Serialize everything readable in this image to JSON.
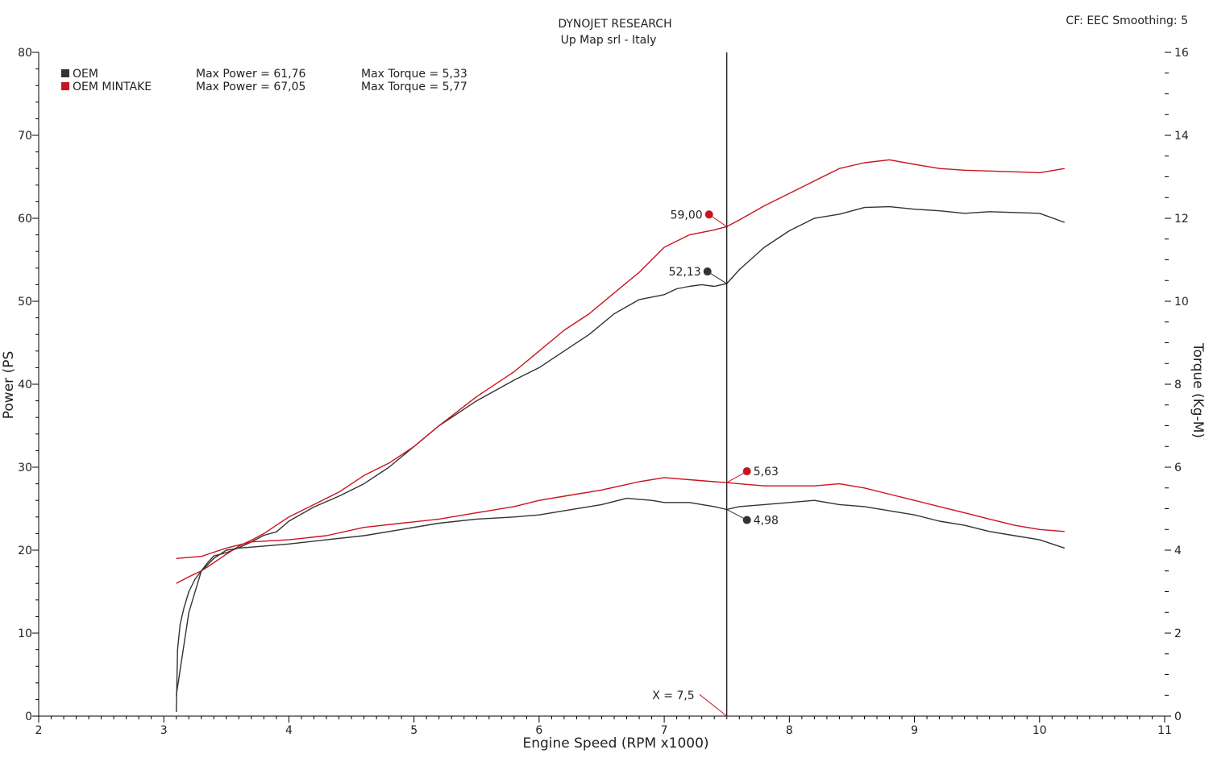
{
  "header": {
    "title": "DYNOJET RESEARCH",
    "subtitle": "Up Map srl - Italy",
    "settings": "CF: EEC  Smoothing: 5"
  },
  "colors": {
    "oem": "#333333",
    "mintake": "#c8141e",
    "axis": "#000000"
  },
  "legend": [
    {
      "name": "OEM",
      "power_label": "Max Power = 61,76",
      "torque_label": "Max Torque = 5,33",
      "color": "#333333"
    },
    {
      "name": "OEM MINTAKE",
      "power_label": "Max Power = 67,05",
      "torque_label": "Max Torque = 5,77",
      "color": "#c8141e"
    }
  ],
  "cursor": {
    "x": 7.5,
    "label": "X = 7,5"
  },
  "markers": [
    {
      "series": "OEM MINTAKE",
      "axis": "power",
      "value": 59.0,
      "label": "59,00"
    },
    {
      "series": "OEM",
      "axis": "power",
      "value": 52.13,
      "label": "52,13"
    },
    {
      "series": "OEM MINTAKE",
      "axis": "torque",
      "value": 5.63,
      "label": "5,63"
    },
    {
      "series": "OEM",
      "axis": "torque",
      "value": 4.98,
      "label": "4,98"
    }
  ],
  "chart_data": {
    "type": "line",
    "title": "DYNOJET RESEARCH",
    "subtitle": "Up Map srl - Italy",
    "xlabel": "Engine Speed (RPM x1000)",
    "ylabel": "Power (PS",
    "y2label": "Torque (Kg-M)",
    "xlim": [
      2,
      11
    ],
    "ylim": [
      0,
      80
    ],
    "y2lim": [
      0,
      16
    ],
    "xticks": [
      "2",
      "3",
      "4",
      "5",
      "6",
      "7",
      "8",
      "9",
      "10",
      "11"
    ],
    "yticks": [
      "0",
      "10",
      "20",
      "30",
      "40",
      "50",
      "60",
      "70",
      "80"
    ],
    "y2ticks": [
      "0",
      "2",
      "4",
      "6",
      "8",
      "10",
      "12",
      "14",
      "16"
    ],
    "grid": false,
    "legend_position": "top-left",
    "series": [
      {
        "name": "OEM",
        "measure": "power",
        "axis": "left",
        "x": [
          3.1,
          3.11,
          3.13,
          3.16,
          3.2,
          3.25,
          3.3,
          3.35,
          3.4,
          3.5,
          3.6,
          3.7,
          3.8,
          3.9,
          4.0,
          4.2,
          4.4,
          4.6,
          4.8,
          5.0,
          5.2,
          5.5,
          5.8,
          6.0,
          6.2,
          6.4,
          6.6,
          6.8,
          7.0,
          7.1,
          7.2,
          7.3,
          7.4,
          7.5,
          7.6,
          7.8,
          8.0,
          8.2,
          8.4,
          8.6,
          8.8,
          9.0,
          9.2,
          9.4,
          9.6,
          9.8,
          10.0,
          10.2
        ],
        "values": [
          0.5,
          8.0,
          11.0,
          13.0,
          15.0,
          16.5,
          17.5,
          18.5,
          19.3,
          19.7,
          20.3,
          21.0,
          21.8,
          22.2,
          23.5,
          25.2,
          26.5,
          28.0,
          30.0,
          32.5,
          35.0,
          38.0,
          40.5,
          42.0,
          44.0,
          46.0,
          48.5,
          50.2,
          50.8,
          51.5,
          51.8,
          52.0,
          51.8,
          52.13,
          53.8,
          56.5,
          58.5,
          60.0,
          60.5,
          61.3,
          61.4,
          61.1,
          60.9,
          60.6,
          60.8,
          60.7,
          60.6,
          59.5
        ]
      },
      {
        "name": "OEM MINTAKE",
        "measure": "power",
        "axis": "left",
        "x": [
          3.1,
          3.2,
          3.3,
          3.4,
          3.5,
          3.6,
          3.7,
          3.8,
          3.9,
          4.0,
          4.2,
          4.4,
          4.6,
          4.8,
          5.0,
          5.2,
          5.5,
          5.8,
          6.0,
          6.2,
          6.4,
          6.6,
          6.8,
          7.0,
          7.2,
          7.4,
          7.5,
          7.6,
          7.8,
          8.0,
          8.2,
          8.4,
          8.6,
          8.8,
          9.0,
          9.2,
          9.4,
          9.6,
          9.8,
          10.0,
          10.2
        ],
        "values": [
          16.0,
          16.8,
          17.5,
          18.5,
          19.5,
          20.5,
          21.2,
          22.0,
          23.0,
          24.0,
          25.5,
          27.0,
          29.0,
          30.5,
          32.5,
          35.0,
          38.5,
          41.5,
          44.0,
          46.5,
          48.5,
          51.0,
          53.5,
          56.5,
          58.0,
          58.6,
          59.0,
          59.8,
          61.5,
          63.0,
          64.5,
          66.0,
          66.7,
          67.05,
          66.5,
          66.0,
          65.8,
          65.7,
          65.6,
          65.5,
          66.0
        ]
      },
      {
        "name": "OEM",
        "measure": "torque",
        "axis": "right",
        "x": [
          3.1,
          3.2,
          3.3,
          3.4,
          3.5,
          3.6,
          3.8,
          4.0,
          4.3,
          4.6,
          4.9,
          5.2,
          5.5,
          5.8,
          6.0,
          6.2,
          6.5,
          6.7,
          6.9,
          7.0,
          7.2,
          7.4,
          7.5,
          7.6,
          7.8,
          8.0,
          8.2,
          8.4,
          8.6,
          8.8,
          9.0,
          9.2,
          9.4,
          9.6,
          9.8,
          10.0,
          10.2
        ],
        "values": [
          0.5,
          2.5,
          3.5,
          3.8,
          4.0,
          4.05,
          4.1,
          4.15,
          4.25,
          4.35,
          4.5,
          4.65,
          4.75,
          4.8,
          4.85,
          4.95,
          5.1,
          5.25,
          5.2,
          5.15,
          5.15,
          5.05,
          4.98,
          5.05,
          5.1,
          5.15,
          5.2,
          5.1,
          5.05,
          4.95,
          4.85,
          4.7,
          4.6,
          4.45,
          4.35,
          4.25,
          4.05
        ]
      },
      {
        "name": "OEM MINTAKE",
        "measure": "torque",
        "axis": "right",
        "x": [
          3.1,
          3.3,
          3.5,
          3.7,
          4.0,
          4.3,
          4.6,
          4.9,
          5.2,
          5.5,
          5.8,
          6.0,
          6.2,
          6.5,
          6.8,
          7.0,
          7.2,
          7.4,
          7.5,
          7.6,
          7.8,
          8.0,
          8.2,
          8.4,
          8.6,
          8.8,
          9.0,
          9.2,
          9.4,
          9.6,
          9.8,
          10.0,
          10.2
        ],
        "values": [
          3.8,
          3.85,
          4.05,
          4.2,
          4.25,
          4.35,
          4.55,
          4.65,
          4.75,
          4.9,
          5.05,
          5.2,
          5.3,
          5.45,
          5.65,
          5.75,
          5.7,
          5.65,
          5.63,
          5.6,
          5.55,
          5.55,
          5.55,
          5.6,
          5.5,
          5.35,
          5.2,
          5.05,
          4.9,
          4.75,
          4.6,
          4.5,
          4.45
        ]
      }
    ]
  }
}
